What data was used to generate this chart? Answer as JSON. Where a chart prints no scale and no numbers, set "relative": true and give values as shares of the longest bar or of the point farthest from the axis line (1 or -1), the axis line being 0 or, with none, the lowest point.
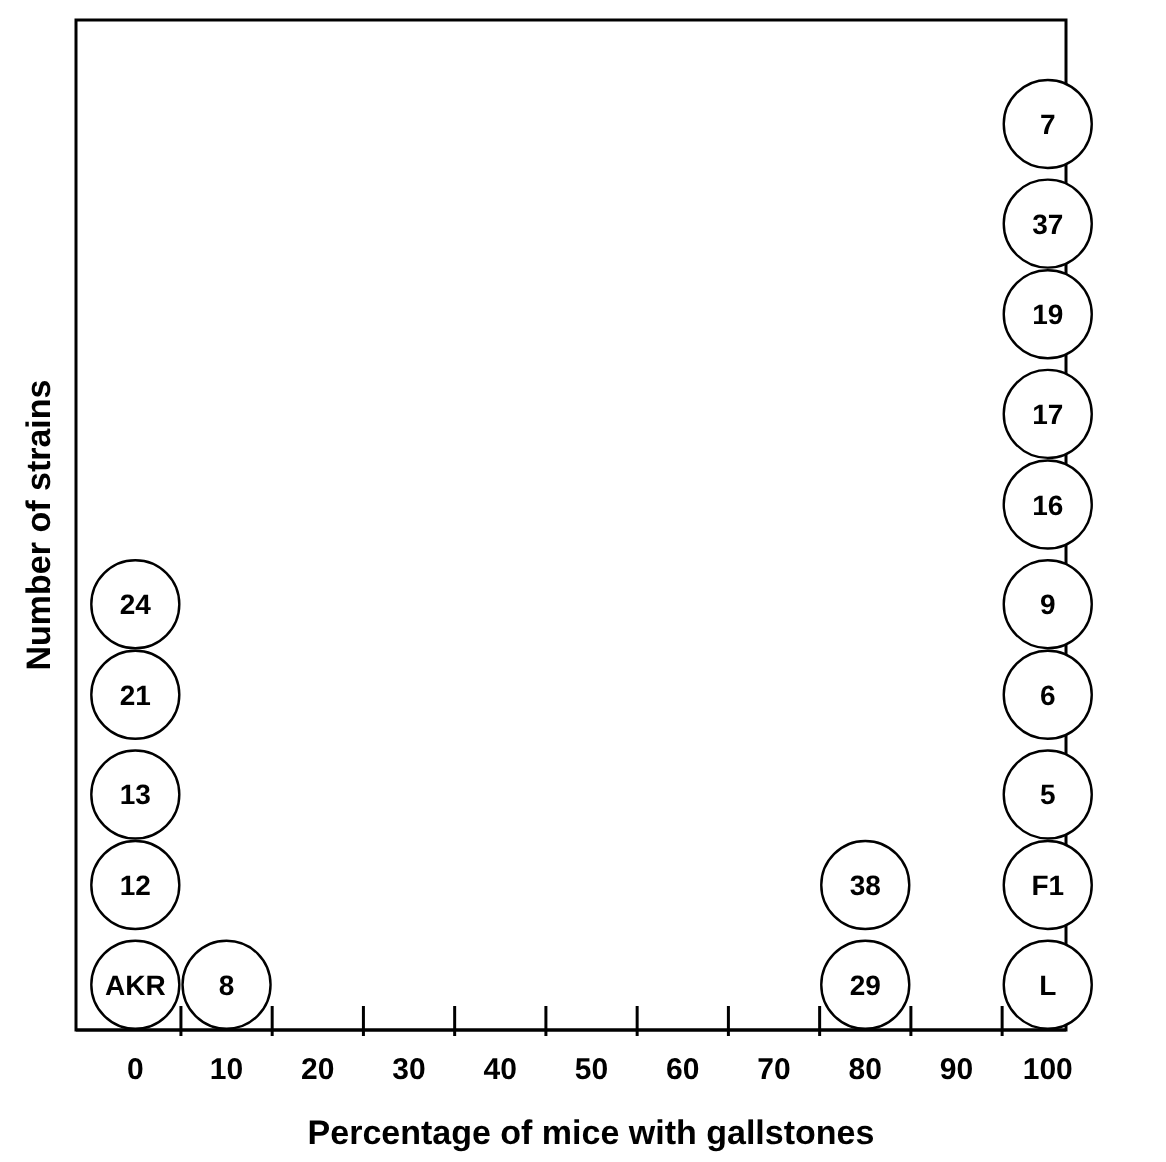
{
  "chart_data": {
    "type": "scatter",
    "xlabel": "Percentage of mice with gallstones",
    "ylabel": "Number of strains",
    "relative": true,
    "marker": "circle",
    "grid": false,
    "xlim": [
      -6.5,
      102
    ],
    "xticks": [
      0,
      {
        "value": 5,
        "label": null
      },
      10,
      {
        "value": 15,
        "label": null
      },
      20,
      {
        "value": 25,
        "label": null
      },
      30,
      {
        "value": 35,
        "label": null
      },
      40,
      {
        "value": 45,
        "label": null
      },
      50,
      {
        "value": 55,
        "label": null
      },
      60,
      {
        "value": 65,
        "label": null
      },
      70,
      {
        "value": 75,
        "label": null
      },
      80,
      {
        "value": 85,
        "label": null
      },
      90,
      {
        "value": 95,
        "label": null
      },
      100
    ],
    "series": [
      {
        "color": "#ffffff",
        "x": [
          0,
          0,
          0,
          0,
          0,
          10,
          80,
          80,
          100,
          100,
          100,
          100,
          100,
          100,
          100,
          100,
          100,
          100
        ],
        "values": [
          0.05,
          0.16,
          0.26,
          0.37,
          0.47,
          0.05,
          0.05,
          0.16,
          0.05,
          0.16,
          0.26,
          0.37,
          0.47,
          0.58,
          0.68,
          0.79,
          0.89,
          1.0
        ]
      }
    ],
    "annotations": [
      {
        "text": "AKR",
        "x": 0,
        "y": 0.05
      },
      {
        "text": "12",
        "x": 0,
        "y": 0.16
      },
      {
        "text": "13",
        "x": 0,
        "y": 0.26
      },
      {
        "text": "21",
        "x": 0,
        "y": 0.37
      },
      {
        "text": "24",
        "x": 0,
        "y": 0.47
      },
      {
        "text": "8",
        "x": 10,
        "y": 0.05
      },
      {
        "text": "29",
        "x": 80,
        "y": 0.05
      },
      {
        "text": "38",
        "x": 80,
        "y": 0.16
      },
      {
        "text": "L",
        "x": 100,
        "y": 0.05
      },
      {
        "text": "F1",
        "x": 100,
        "y": 0.16
      },
      {
        "text": "5",
        "x": 100,
        "y": 0.26
      },
      {
        "text": "6",
        "x": 100,
        "y": 0.37
      },
      {
        "text": "9",
        "x": 100,
        "y": 0.47
      },
      {
        "text": "16",
        "x": 100,
        "y": 0.58
      },
      {
        "text": "17",
        "x": 100,
        "y": 0.68
      },
      {
        "text": "19",
        "x": 100,
        "y": 0.79
      },
      {
        "text": "37",
        "x": 100,
        "y": 0.89
      },
      {
        "text": "7",
        "x": 100,
        "y": 1.0
      }
    ]
  }
}
